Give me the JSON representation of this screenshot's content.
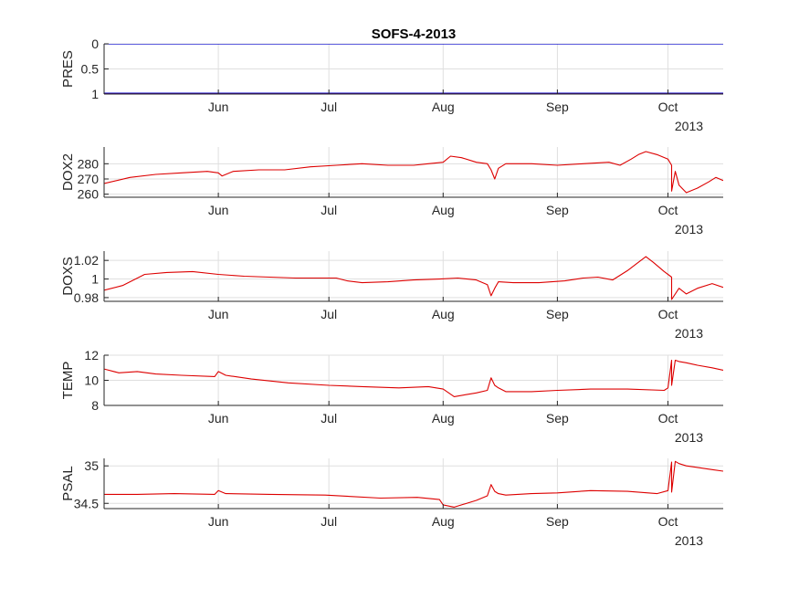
{
  "figure_title": "SOFS-4-2013",
  "chart_data": [
    {
      "type": "line",
      "ylabel": "PRES",
      "y_reversed": true,
      "ylim": [
        0,
        1
      ],
      "yticks": [
        0,
        0.5,
        1
      ],
      "ytick_labels": [
        "0",
        "0.5",
        "1"
      ],
      "xlim": [
        "2013-05-01",
        "2013-10-16"
      ],
      "xticks": [
        "2013-06-01",
        "2013-07-01",
        "2013-08-01",
        "2013-09-01",
        "2013-10-01"
      ],
      "xtick_labels": [
        "Jun",
        "Jul",
        "Aug",
        "Sep",
        "Oct"
      ],
      "year_label": "2013",
      "reference_lines": [
        {
          "y": 0,
          "color": "#0000cc"
        },
        {
          "y": 0.985,
          "color": "#0000cc"
        },
        {
          "y": 1,
          "color": "#dd0000"
        }
      ],
      "series": [
        {
          "color": "#dd0000",
          "x": [
            "2013-05-01",
            "2013-10-16"
          ],
          "y": [
            1,
            1
          ]
        }
      ]
    },
    {
      "type": "line",
      "ylabel": "DOX2",
      "ylim": [
        258,
        291
      ],
      "yticks": [
        260,
        270,
        280
      ],
      "ytick_labels": [
        "260",
        "270",
        "280"
      ],
      "xlim": [
        "2013-05-01",
        "2013-10-16"
      ],
      "xticks": [
        "2013-06-01",
        "2013-07-01",
        "2013-08-01",
        "2013-09-01",
        "2013-10-01"
      ],
      "xtick_labels": [
        "Jun",
        "Jul",
        "Aug",
        "Sep",
        "Oct"
      ],
      "year_label": "2013",
      "series": [
        {
          "color": "#dd0000",
          "x": [
            "2013-05-01",
            "2013-05-08",
            "2013-05-15",
            "2013-05-22",
            "2013-05-29",
            "2013-06-01",
            "2013-06-02",
            "2013-06-05",
            "2013-06-12",
            "2013-06-19",
            "2013-06-26",
            "2013-07-03",
            "2013-07-10",
            "2013-07-17",
            "2013-07-24",
            "2013-07-28",
            "2013-08-01",
            "2013-08-03",
            "2013-08-06",
            "2013-08-10",
            "2013-08-13",
            "2013-08-14",
            "2013-08-15",
            "2013-08-16",
            "2013-08-18",
            "2013-08-25",
            "2013-09-01",
            "2013-09-08",
            "2013-09-15",
            "2013-09-18",
            "2013-09-21",
            "2013-09-23",
            "2013-09-25",
            "2013-09-28",
            "2013-10-01",
            "2013-10-02",
            "2013-10-02",
            "2013-10-03",
            "2013-10-04",
            "2013-10-06",
            "2013-10-09",
            "2013-10-12",
            "2013-10-14",
            "2013-10-16"
          ],
          "y": [
            267,
            271,
            273,
            274,
            275,
            274,
            272,
            275,
            276,
            276,
            278,
            279,
            280,
            279,
            279,
            280,
            281,
            285,
            284,
            281,
            280,
            276,
            270,
            277,
            280,
            280,
            279,
            280,
            281,
            279,
            283,
            286,
            288,
            286,
            283,
            279,
            262,
            275,
            266,
            261,
            264,
            268,
            271,
            269
          ]
        }
      ]
    },
    {
      "type": "line",
      "ylabel": "DOXS",
      "ylim": [
        0.976,
        1.03
      ],
      "yticks": [
        0.98,
        1,
        1.02
      ],
      "ytick_labels": [
        "0.98",
        "1",
        "1.02"
      ],
      "xlim": [
        "2013-05-01",
        "2013-10-16"
      ],
      "xticks": [
        "2013-06-01",
        "2013-07-01",
        "2013-08-01",
        "2013-09-01",
        "2013-10-01"
      ],
      "xtick_labels": [
        "Jun",
        "Jul",
        "Aug",
        "Sep",
        "Oct"
      ],
      "year_label": "2013",
      "series": [
        {
          "color": "#dd0000",
          "x": [
            "2013-05-01",
            "2013-05-06",
            "2013-05-12",
            "2013-05-18",
            "2013-05-25",
            "2013-06-01",
            "2013-06-08",
            "2013-06-15",
            "2013-06-22",
            "2013-06-29",
            "2013-07-03",
            "2013-07-06",
            "2013-07-10",
            "2013-07-17",
            "2013-07-24",
            "2013-07-31",
            "2013-08-05",
            "2013-08-10",
            "2013-08-13",
            "2013-08-14",
            "2013-08-15",
            "2013-08-16",
            "2013-08-20",
            "2013-08-27",
            "2013-09-03",
            "2013-09-08",
            "2013-09-12",
            "2013-09-16",
            "2013-09-20",
            "2013-09-23",
            "2013-09-25",
            "2013-09-27",
            "2013-09-30",
            "2013-10-02",
            "2013-10-02",
            "2013-10-04",
            "2013-10-06",
            "2013-10-09",
            "2013-10-13",
            "2013-10-16"
          ],
          "y": [
            0.988,
            0.993,
            1.005,
            1.007,
            1.008,
            1.005,
            1.003,
            1.002,
            1.001,
            1.001,
            1.001,
            0.998,
            0.996,
            0.997,
            0.999,
            1.0,
            1.001,
            0.999,
            0.994,
            0.982,
            0.99,
            0.997,
            0.996,
            0.996,
            0.998,
            1.001,
            1.002,
            0.999,
            1.009,
            1.018,
            1.024,
            1.018,
            1.008,
            1.002,
            0.978,
            0.99,
            0.984,
            0.99,
            0.995,
            0.991
          ]
        }
      ]
    },
    {
      "type": "line",
      "ylabel": "TEMP",
      "ylim": [
        8,
        12
      ],
      "yticks": [
        8,
        10,
        12
      ],
      "ytick_labels": [
        "8",
        "10",
        "12"
      ],
      "xlim": [
        "2013-05-01",
        "2013-10-16"
      ],
      "xticks": [
        "2013-06-01",
        "2013-07-01",
        "2013-08-01",
        "2013-09-01",
        "2013-10-01"
      ],
      "xtick_labels": [
        "Jun",
        "Jul",
        "Aug",
        "Sep",
        "Oct"
      ],
      "year_label": "2013",
      "series": [
        {
          "color": "#dd0000",
          "x": [
            "2013-05-01",
            "2013-05-05",
            "2013-05-10",
            "2013-05-15",
            "2013-05-22",
            "2013-05-31",
            "2013-06-01",
            "2013-06-03",
            "2013-06-10",
            "2013-06-20",
            "2013-07-01",
            "2013-07-10",
            "2013-07-20",
            "2013-07-28",
            "2013-08-01",
            "2013-08-04",
            "2013-08-10",
            "2013-08-13",
            "2013-08-14",
            "2013-08-15",
            "2013-08-16",
            "2013-08-18",
            "2013-08-25",
            "2013-09-01",
            "2013-09-10",
            "2013-09-20",
            "2013-09-30",
            "2013-10-01",
            "2013-10-02",
            "2013-10-02",
            "2013-10-03",
            "2013-10-04",
            "2013-10-06",
            "2013-10-09",
            "2013-10-13",
            "2013-10-16"
          ],
          "y": [
            10.9,
            10.6,
            10.7,
            10.5,
            10.4,
            10.3,
            10.7,
            10.4,
            10.1,
            9.8,
            9.6,
            9.5,
            9.4,
            9.5,
            9.3,
            8.7,
            9.0,
            9.2,
            10.2,
            9.6,
            9.4,
            9.1,
            9.1,
            9.2,
            9.3,
            9.3,
            9.2,
            9.4,
            11.6,
            9.6,
            11.6,
            11.5,
            11.4,
            11.2,
            11.0,
            10.8
          ]
        }
      ]
    },
    {
      "type": "line",
      "ylabel": "PSAL",
      "ylim": [
        34.43,
        35.1
      ],
      "yticks": [
        34.5,
        35
      ],
      "ytick_labels": [
        "34.5",
        "35"
      ],
      "xlim": [
        "2013-05-01",
        "2013-10-16"
      ],
      "xticks": [
        "2013-06-01",
        "2013-07-01",
        "2013-08-01",
        "2013-09-01",
        "2013-10-01"
      ],
      "xtick_labels": [
        "Jun",
        "Jul",
        "Aug",
        "Sep",
        "Oct"
      ],
      "year_label": "2013",
      "series": [
        {
          "color": "#dd0000",
          "x": [
            "2013-05-01",
            "2013-05-10",
            "2013-05-20",
            "2013-05-31",
            "2013-06-01",
            "2013-06-03",
            "2013-06-15",
            "2013-06-30",
            "2013-07-15",
            "2013-07-25",
            "2013-07-31",
            "2013-08-01",
            "2013-08-04",
            "2013-08-10",
            "2013-08-13",
            "2013-08-14",
            "2013-08-15",
            "2013-08-16",
            "2013-08-18",
            "2013-08-25",
            "2013-09-01",
            "2013-09-10",
            "2013-09-20",
            "2013-09-28",
            "2013-10-01",
            "2013-10-02",
            "2013-10-02",
            "2013-10-03",
            "2013-10-04",
            "2013-10-06",
            "2013-10-09",
            "2013-10-13",
            "2013-10-16"
          ],
          "y": [
            34.62,
            34.62,
            34.63,
            34.62,
            34.67,
            34.63,
            34.62,
            34.61,
            34.57,
            34.58,
            34.55,
            34.48,
            34.45,
            34.54,
            34.6,
            34.75,
            34.66,
            34.63,
            34.61,
            34.63,
            34.64,
            34.67,
            34.66,
            34.63,
            34.67,
            35.05,
            34.65,
            35.06,
            35.03,
            35.0,
            34.98,
            34.95,
            34.93
          ]
        }
      ]
    }
  ]
}
